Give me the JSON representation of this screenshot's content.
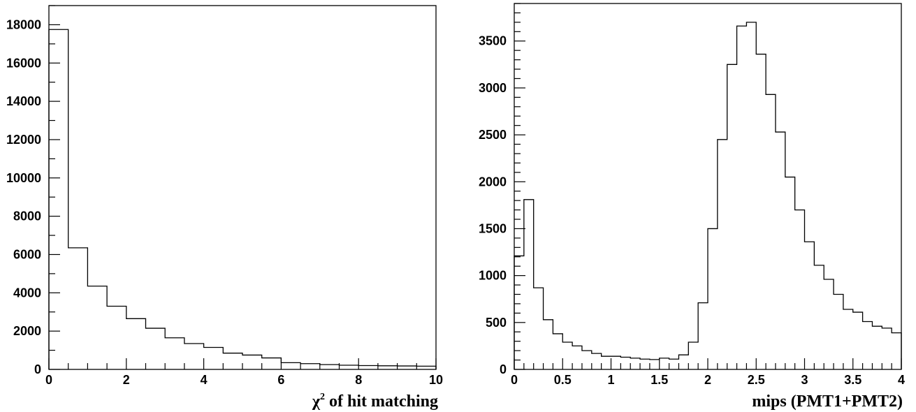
{
  "chart_data": [
    {
      "type": "bar",
      "style": "step-histogram",
      "title": "",
      "xlabel": "χ² of hit matching",
      "xlabel_parts": {
        "symbol": "χ",
        "superscript": "2",
        "rest": " of hit matching"
      },
      "ylabel": "",
      "xlim": [
        0,
        10
      ],
      "ylim": [
        0,
        19000
      ],
      "x_major_ticks": [
        0,
        2,
        4,
        6,
        8,
        10
      ],
      "x_tick_labels": [
        "0",
        "2",
        "4",
        "6",
        "8",
        "10"
      ],
      "y_major_ticks": [
        0,
        2000,
        4000,
        6000,
        8000,
        10000,
        12000,
        14000,
        16000,
        18000
      ],
      "y_tick_labels": [
        "0",
        "2000",
        "4000",
        "6000",
        "8000",
        "10000",
        "12000",
        "14000",
        "16000",
        "18000"
      ],
      "grid": false,
      "bin_edges": [
        0,
        0.5,
        1,
        1.5,
        2,
        2.5,
        3,
        3.5,
        4,
        4.5,
        5,
        5.5,
        6,
        6.5,
        7,
        7.5,
        8,
        8.5,
        9,
        9.5,
        10
      ],
      "values": [
        17750,
        6350,
        4350,
        3300,
        2650,
        2150,
        1650,
        1350,
        1150,
        850,
        750,
        600,
        350,
        300,
        250,
        220,
        200,
        190,
        180,
        170
      ]
    },
    {
      "type": "bar",
      "style": "step-histogram",
      "title": "",
      "xlabel": "mips (PMT1+PMT2)",
      "ylabel": "",
      "xlim": [
        0,
        4
      ],
      "ylim": [
        0,
        3900
      ],
      "x_major_ticks": [
        0,
        0.5,
        1,
        1.5,
        2,
        2.5,
        3,
        3.5,
        4
      ],
      "x_tick_labels": [
        "0",
        "0.5",
        "1",
        "1.5",
        "2",
        "2.5",
        "3",
        "3.5",
        "4"
      ],
      "y_major_ticks": [
        0,
        500,
        1000,
        1500,
        2000,
        2500,
        3000,
        3500
      ],
      "y_tick_labels": [
        "0",
        "500",
        "1000",
        "1500",
        "2000",
        "2500",
        "3000",
        "3500"
      ],
      "grid": false,
      "bin_width": 0.1,
      "bin_start": 0,
      "values": [
        1210,
        1810,
        870,
        530,
        380,
        290,
        250,
        200,
        170,
        140,
        140,
        130,
        120,
        110,
        105,
        120,
        110,
        155,
        290,
        710,
        1500,
        2450,
        3250,
        3660,
        3700,
        3360,
        2930,
        2530,
        2050,
        1700,
        1360,
        1110,
        960,
        800,
        640,
        610,
        510,
        460,
        440,
        390
      ]
    }
  ]
}
